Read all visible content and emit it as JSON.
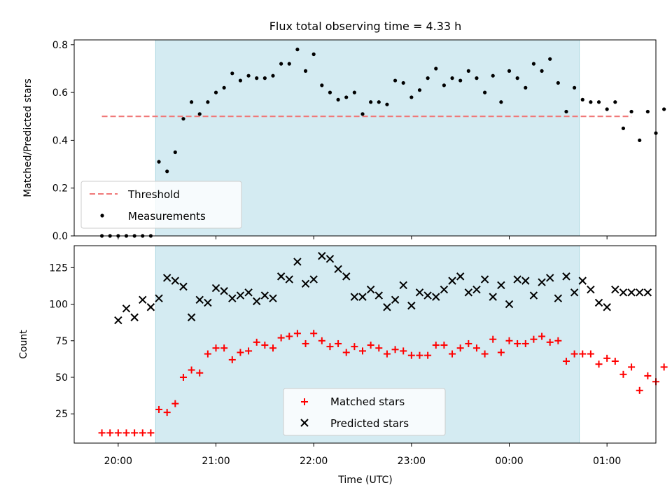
{
  "chart_data": {
    "title": "Flux total observing time = 4.33 h",
    "xlabel": "Time (UTC)",
    "x_tick_labels": [
      "20:00",
      "21:00",
      "22:00",
      "23:00",
      "00:00",
      "01:00"
    ],
    "x_range": [
      "19:33",
      "01:30"
    ],
    "shaded_span": [
      "20:23",
      "00:43"
    ],
    "shade_color": "#d4ebf2",
    "panels": [
      {
        "type": "scatter",
        "ylabel": "Matched/Predicted stars",
        "ylim": [
          0,
          0.82
        ],
        "y_ticks": [
          0.0,
          0.2,
          0.4,
          0.6,
          0.8
        ],
        "y_tick_labels": [
          "0.0",
          "0.2",
          "0.4",
          "0.6",
          "0.8"
        ],
        "legend": {
          "position": "lower-left",
          "entries": [
            "Threshold",
            "Measurements"
          ]
        },
        "threshold": {
          "name": "Threshold",
          "value": 0.5,
          "x_range": [
            "19:50",
            "01:15"
          ],
          "color": "#f07878"
        },
        "series": [
          {
            "name": "Measurements",
            "color": "#000000",
            "x": [
              "19:50",
              "19:55",
              "20:00",
              "20:05",
              "20:10",
              "20:15",
              "20:20",
              "20:25",
              "20:30",
              "20:35",
              "20:40",
              "20:45",
              "20:50",
              "20:55",
              "21:00",
              "21:05",
              "21:10",
              "21:15",
              "21:20",
              "21:25",
              "21:30",
              "21:35",
              "21:40",
              "21:45",
              "21:50",
              "21:55",
              "22:00",
              "22:05",
              "22:10",
              "22:15",
              "22:20",
              "22:25",
              "22:30",
              "22:35",
              "22:40",
              "22:45",
              "22:50",
              "22:55",
              "23:00",
              "23:05",
              "23:10",
              "23:15",
              "23:20",
              "23:25",
              "23:30",
              "23:35",
              "23:40",
              "23:45",
              "23:50",
              "23:55",
              "00:00",
              "00:05",
              "00:10",
              "00:15",
              "00:20",
              "00:25",
              "00:30",
              "00:35",
              "00:40",
              "00:45",
              "00:50",
              "00:55",
              "01:00",
              "01:05",
              "01:10",
              "01:15",
              "01:20",
              "01:25",
              "01:30",
              "01:35"
            ],
            "y": [
              0.0,
              0.0,
              0.0,
              0.0,
              0.0,
              0.0,
              0.0,
              0.31,
              0.27,
              0.35,
              0.49,
              0.56,
              0.51,
              0.56,
              0.6,
              0.62,
              0.68,
              0.65,
              0.67,
              0.66,
              0.66,
              0.67,
              0.72,
              0.72,
              0.78,
              0.69,
              0.76,
              0.63,
              0.6,
              0.57,
              0.58,
              0.6,
              0.51,
              0.56,
              0.56,
              0.55,
              0.65,
              0.64,
              0.58,
              0.61,
              0.66,
              0.7,
              0.63,
              0.66,
              0.65,
              0.69,
              0.66,
              0.6,
              0.67,
              0.56,
              0.69,
              0.66,
              0.62,
              0.72,
              0.69,
              0.74,
              0.64,
              0.52,
              0.62,
              0.57,
              0.56,
              0.56,
              0.53,
              0.56,
              0.45,
              0.52,
              0.4,
              0.52,
              0.43,
              0.53
            ]
          }
        ]
      },
      {
        "type": "scatter",
        "ylabel": "Count",
        "ylim": [
          5,
          140
        ],
        "y_ticks": [
          25,
          50,
          75,
          100,
          125
        ],
        "y_tick_labels": [
          "25",
          "50",
          "75",
          "100",
          "125"
        ],
        "legend": {
          "position": "lower-center",
          "entries": [
            "Matched stars",
            "Predicted stars"
          ]
        },
        "series": [
          {
            "name": "Matched stars",
            "marker": "+",
            "color": "#ff0000",
            "x": [
              "19:50",
              "19:55",
              "20:00",
              "20:05",
              "20:10",
              "20:15",
              "20:20",
              "20:25",
              "20:30",
              "20:35",
              "20:40",
              "20:45",
              "20:50",
              "20:55",
              "21:00",
              "21:05",
              "21:10",
              "21:15",
              "21:20",
              "21:25",
              "21:30",
              "21:35",
              "21:40",
              "21:45",
              "21:50",
              "21:55",
              "22:00",
              "22:05",
              "22:10",
              "22:15",
              "22:20",
              "22:25",
              "22:30",
              "22:35",
              "22:40",
              "22:45",
              "22:50",
              "22:55",
              "23:00",
              "23:05",
              "23:10",
              "23:15",
              "23:20",
              "23:25",
              "23:30",
              "23:35",
              "23:40",
              "23:45",
              "23:50",
              "23:55",
              "00:00",
              "00:05",
              "00:10",
              "00:15",
              "00:20",
              "00:25",
              "00:30",
              "00:35",
              "00:40",
              "00:45",
              "00:50",
              "00:55",
              "01:00",
              "01:05",
              "01:10",
              "01:15",
              "01:20",
              "01:25",
              "01:30",
              "01:35"
            ],
            "y": [
              12,
              12,
              12,
              12,
              12,
              12,
              12,
              28,
              26,
              32,
              50,
              55,
              53,
              66,
              70,
              70,
              62,
              67,
              68,
              74,
              72,
              70,
              77,
              78,
              80,
              73,
              80,
              75,
              71,
              73,
              67,
              71,
              68,
              72,
              70,
              66,
              69,
              68,
              65,
              65,
              65,
              72,
              72,
              66,
              70,
              73,
              70,
              66,
              76,
              67,
              75,
              73,
              73,
              76,
              78,
              74,
              75,
              61,
              66,
              66,
              66,
              59,
              63,
              61,
              52,
              57,
              41,
              51,
              47,
              57
            ]
          },
          {
            "name": "Predicted stars",
            "marker": "x",
            "color": "#000000",
            "x": [
              "20:00",
              "20:05",
              "20:10",
              "20:15",
              "20:20",
              "20:25",
              "20:30",
              "20:35",
              "20:40",
              "20:45",
              "20:50",
              "20:55",
              "21:00",
              "21:05",
              "21:10",
              "21:15",
              "21:20",
              "21:25",
              "21:30",
              "21:35",
              "21:40",
              "21:45",
              "21:50",
              "21:55",
              "22:00",
              "22:05",
              "22:10",
              "22:15",
              "22:20",
              "22:25",
              "22:30",
              "22:35",
              "22:40",
              "22:45",
              "22:50",
              "22:55",
              "23:00",
              "23:05",
              "23:10",
              "23:15",
              "23:20",
              "23:25",
              "23:30",
              "23:35",
              "23:40",
              "23:45",
              "23:50",
              "23:55",
              "00:00",
              "00:05",
              "00:10",
              "00:15",
              "00:20",
              "00:25",
              "00:30",
              "00:35",
              "00:40",
              "00:45",
              "00:50",
              "00:55",
              "01:00",
              "01:05",
              "01:10",
              "01:15",
              "01:20",
              "01:25"
            ],
            "y": [
              89,
              97,
              91,
              103,
              98,
              104,
              118,
              116,
              112,
              91,
              103,
              101,
              111,
              109,
              104,
              106,
              108,
              102,
              106,
              104,
              119,
              117,
              129,
              114,
              117,
              133,
              131,
              124,
              119,
              105,
              105,
              110,
              106,
              98,
              103,
              113,
              99,
              108,
              106,
              105,
              110,
              116,
              119,
              108,
              110,
              117,
              105,
              113,
              100,
              117,
              116,
              106,
              115,
              118,
              104,
              119,
              108,
              116,
              110,
              101,
              98,
              110,
              108,
              108,
              108,
              108
            ]
          }
        ]
      }
    ]
  }
}
